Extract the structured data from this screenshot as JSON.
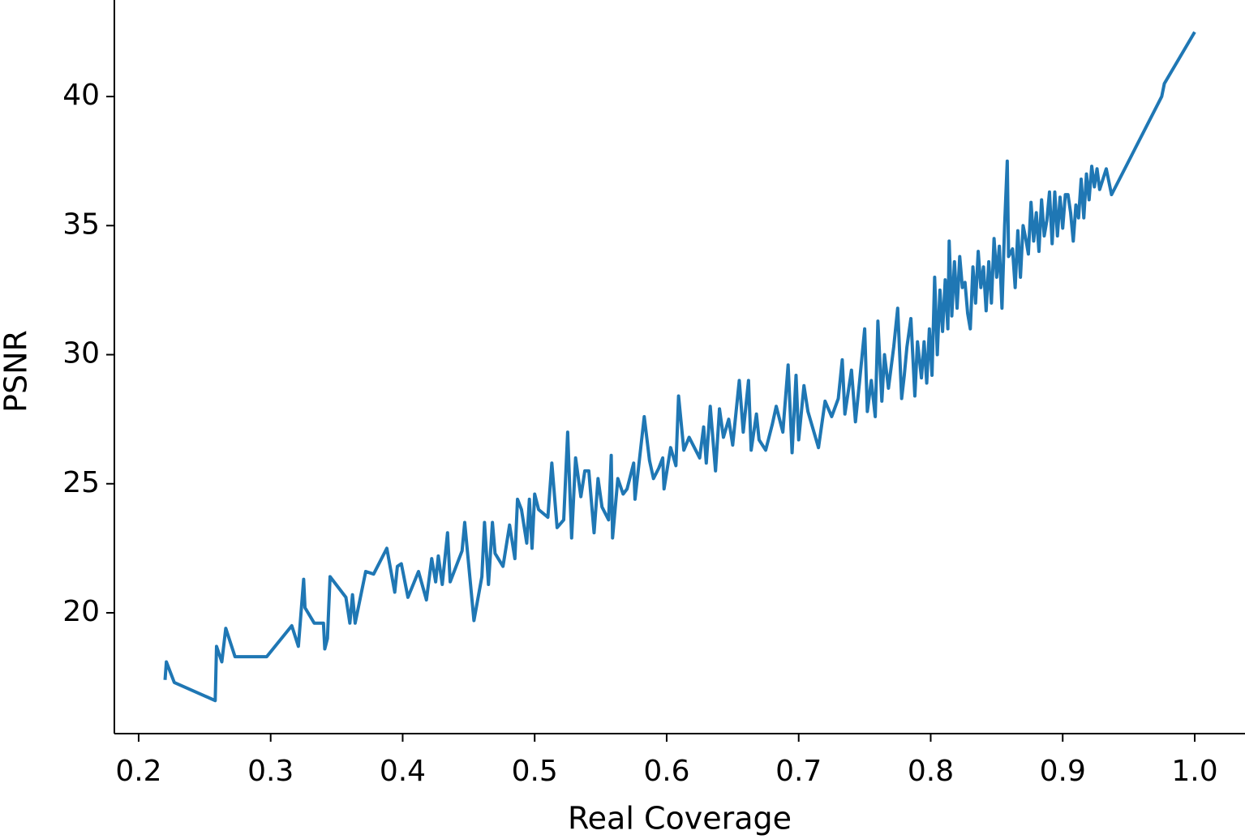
{
  "chart_data": {
    "type": "line",
    "xlabel": "Real Coverage",
    "ylabel": "PSNR",
    "xlim": [
      0.1816,
      1.0381
    ],
    "ylim": [
      15.32,
      43.74
    ],
    "xticks": [
      0.2,
      0.3,
      0.4,
      0.5,
      0.6,
      0.7,
      0.8,
      0.9,
      {
        "value": 1,
        "label": "1.0"
      }
    ],
    "yticks": [
      20,
      25,
      30,
      35,
      40
    ],
    "x": [
      0.22,
      0.221,
      0.227,
      0.258,
      0.259,
      0.263,
      0.266,
      0.273,
      0.297,
      0.316,
      0.321,
      0.325,
      0.326,
      0.333,
      0.34,
      0.341,
      0.343,
      0.345,
      0.357,
      0.36,
      0.362,
      0.364,
      0.372,
      0.378,
      0.388,
      0.394,
      0.396,
      0.399,
      0.404,
      0.412,
      0.418,
      0.422,
      0.425,
      0.427,
      0.43,
      0.434,
      0.436,
      0.445,
      0.447,
      0.454,
      0.46,
      0.462,
      0.465,
      0.468,
      0.47,
      0.476,
      0.481,
      0.485,
      0.487,
      0.49,
      0.494,
      0.496,
      0.498,
      0.5,
      0.503,
      0.51,
      0.513,
      0.517,
      0.522,
      0.525,
      0.528,
      0.531,
      0.535,
      0.538,
      0.541,
      0.545,
      0.548,
      0.551,
      0.556,
      0.558,
      0.559,
      0.563,
      0.567,
      0.57,
      0.575,
      0.576,
      0.583,
      0.587,
      0.59,
      0.594,
      0.597,
      0.598,
      0.603,
      0.607,
      0.609,
      0.613,
      0.617,
      0.625,
      0.628,
      0.63,
      0.633,
      0.637,
      0.64,
      0.643,
      0.647,
      0.65,
      0.655,
      0.658,
      0.662,
      0.664,
      0.668,
      0.67,
      0.675,
      0.68,
      0.683,
      0.688,
      0.692,
      0.695,
      0.698,
      0.7,
      0.704,
      0.707,
      0.715,
      0.72,
      0.725,
      0.73,
      0.733,
      0.735,
      0.74,
      0.743,
      0.746,
      0.75,
      0.752,
      0.755,
      0.758,
      0.76,
      0.763,
      0.765,
      0.768,
      0.77,
      0.772,
      0.775,
      0.778,
      0.78,
      0.782,
      0.785,
      0.788,
      0.79,
      0.793,
      0.795,
      0.797,
      0.799,
      0.801,
      0.803,
      0.805,
      0.807,
      0.809,
      0.811,
      0.813,
      0.814,
      0.816,
      0.818,
      0.82,
      0.822,
      0.824,
      0.826,
      0.828,
      0.83,
      0.832,
      0.834,
      0.836,
      0.838,
      0.84,
      0.842,
      0.844,
      0.846,
      0.848,
      0.85,
      0.852,
      0.854,
      0.856,
      0.858,
      0.859,
      0.862,
      0.864,
      0.866,
      0.868,
      0.87,
      0.872,
      0.874,
      0.876,
      0.878,
      0.88,
      0.882,
      0.884,
      0.886,
      0.888,
      0.89,
      0.892,
      0.894,
      0.896,
      0.898,
      0.9,
      0.902,
      0.904,
      0.906,
      0.908,
      0.91,
      0.912,
      0.914,
      0.916,
      0.918,
      0.92,
      0.922,
      0.924,
      0.926,
      0.928,
      0.933,
      0.937,
      0.975,
      0.977,
      1.0
    ],
    "series": [
      {
        "color": "#1f77b4",
        "values": [
          17.4,
          18.1,
          17.3,
          16.6,
          18.7,
          18.1,
          19.4,
          18.3,
          18.3,
          19.5,
          18.7,
          21.3,
          20.2,
          19.6,
          19.6,
          18.6,
          19.0,
          21.4,
          20.6,
          19.6,
          20.7,
          19.6,
          21.6,
          21.5,
          22.5,
          20.8,
          21.8,
          21.9,
          20.6,
          21.6,
          20.5,
          22.1,
          21.2,
          22.2,
          21.1,
          23.1,
          21.2,
          22.4,
          23.5,
          19.7,
          21.4,
          23.5,
          21.1,
          23.5,
          22.3,
          21.8,
          23.4,
          22.1,
          24.4,
          24.0,
          22.7,
          24.4,
          22.5,
          24.6,
          24.0,
          23.7,
          25.8,
          23.3,
          23.6,
          27.0,
          22.9,
          26.0,
          24.5,
          25.5,
          25.5,
          23.1,
          25.2,
          24.1,
          23.6,
          26.1,
          22.9,
          25.2,
          24.6,
          24.8,
          25.8,
          24.4,
          27.6,
          25.9,
          25.2,
          25.6,
          26.0,
          24.8,
          26.4,
          25.7,
          28.4,
          26.3,
          26.8,
          26.0,
          27.2,
          25.8,
          28.0,
          25.5,
          27.9,
          26.8,
          27.5,
          26.5,
          29.0,
          27.0,
          29.0,
          26.3,
          27.7,
          26.7,
          26.3,
          27.3,
          28.0,
          27.0,
          29.6,
          26.2,
          29.2,
          26.7,
          28.8,
          27.8,
          26.4,
          28.2,
          27.6,
          28.3,
          29.8,
          27.7,
          29.4,
          27.4,
          28.9,
          31.0,
          27.8,
          29.0,
          27.6,
          31.3,
          28.2,
          30.0,
          28.7,
          29.5,
          30.3,
          31.8,
          28.3,
          29.2,
          30.3,
          31.4,
          28.4,
          30.5,
          29.1,
          30.5,
          28.9,
          31.0,
          29.2,
          33.0,
          30.0,
          32.5,
          30.9,
          32.9,
          31.0,
          34.4,
          31.5,
          33.6,
          31.8,
          33.8,
          32.6,
          32.8,
          31.6,
          31.0,
          33.4,
          32.0,
          34.0,
          32.6,
          33.4,
          31.7,
          33.6,
          32.0,
          34.5,
          33.0,
          34.2,
          31.8,
          35.0,
          37.5,
          33.8,
          34.1,
          32.6,
          34.8,
          33.0,
          35.0,
          34.5,
          33.9,
          35.9,
          34.4,
          35.5,
          34.0,
          36.0,
          34.6,
          35.2,
          36.3,
          34.3,
          36.3,
          34.6,
          36.1,
          34.9,
          36.2,
          36.2,
          35.5,
          34.4,
          35.8,
          35.3,
          36.8,
          35.3,
          37.0,
          36.0,
          37.3,
          36.5,
          37.2,
          36.4,
          37.2,
          36.2,
          40.0,
          40.5,
          42.5
        ]
      }
    ]
  }
}
